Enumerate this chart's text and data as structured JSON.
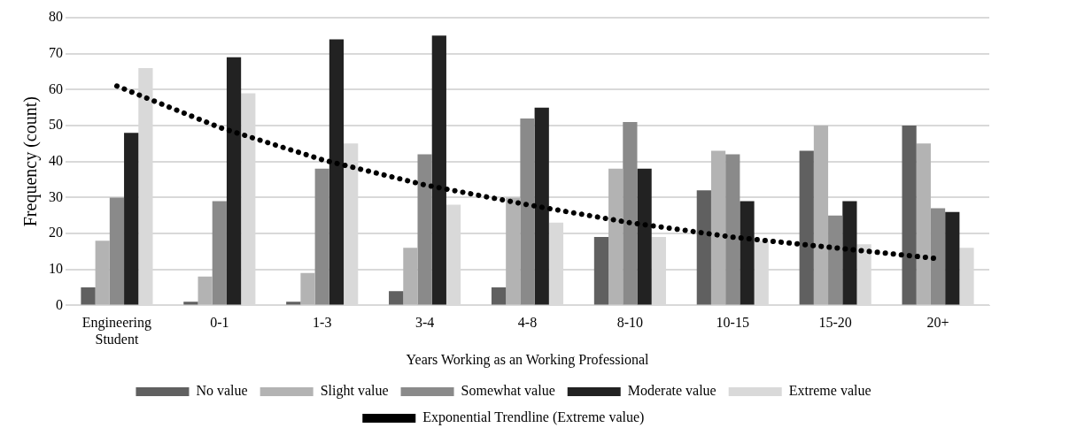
{
  "chart_data": {
    "type": "bar",
    "xlabel": "Years Working as an Working Professional",
    "ylabel": "Frequency (count)",
    "categories": [
      "Engineering Student",
      "0-1",
      "1-3",
      "3-4",
      "4-8",
      "8-10",
      "10-15",
      "15-20",
      "20+"
    ],
    "series": [
      {
        "name": "No value",
        "color": "#606060",
        "values": [
          5,
          1,
          1,
          4,
          5,
          19,
          32,
          43,
          50
        ]
      },
      {
        "name": "Slight value",
        "color": "#b3b3b3",
        "values": [
          18,
          8,
          9,
          16,
          30,
          38,
          43,
          50,
          45
        ]
      },
      {
        "name": "Somewhat value",
        "color": "#8a8a8a",
        "values": [
          30,
          29,
          38,
          42,
          52,
          51,
          42,
          25,
          27
        ]
      },
      {
        "name": "Moderate value",
        "color": "#222222",
        "values": [
          48,
          69,
          74,
          75,
          55,
          38,
          29,
          29,
          26
        ]
      },
      {
        "name": "Extreme value",
        "color": "#d9d9d9",
        "values": [
          66,
          59,
          45,
          28,
          23,
          19,
          18,
          17,
          16
        ]
      },
      {
        "name": "Exponential Trendline (Extreme value)",
        "type": "line",
        "line_style": "dotted",
        "color": "#000000",
        "values": [
          61,
          49.5,
          40.5,
          33.5,
          28,
          23,
          19,
          16,
          13
        ]
      }
    ],
    "ylim": [
      0,
      80
    ],
    "yticks": [
      0,
      10,
      20,
      30,
      40,
      50,
      60,
      70,
      80
    ],
    "grid": "y",
    "legend": "bottom",
    "marker": "none"
  }
}
